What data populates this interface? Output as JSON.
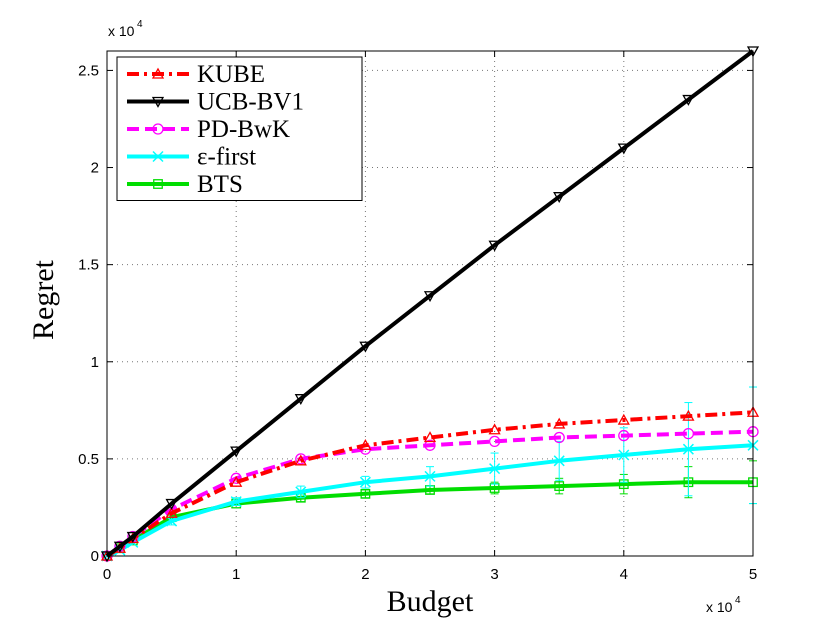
{
  "chart_data": {
    "type": "line",
    "xlabel": "Budget",
    "ylabel": "Regret",
    "x_multiplier_label": "x 10",
    "x_multiplier_exp": "4",
    "y_multiplier_label": "x 10",
    "y_multiplier_exp": "4",
    "xlim": [
      0,
      5
    ],
    "ylim": [
      0,
      2.6
    ],
    "xticks": [
      0,
      1,
      2,
      3,
      4,
      5
    ],
    "xtick_labels": [
      "0",
      "1",
      "2",
      "3",
      "4",
      "5"
    ],
    "yticks": [
      0,
      0.5,
      1,
      1.5,
      2,
      2.5
    ],
    "ytick_labels": [
      "0",
      "0.5",
      "1",
      "1.5",
      "2",
      "2.5"
    ],
    "grid": true,
    "legend_position": "top-left",
    "x": [
      0,
      0.1,
      0.2,
      0.5,
      1,
      1.5,
      2,
      2.5,
      3,
      3.5,
      4,
      4.5,
      5
    ],
    "series": [
      {
        "name": "KUBE",
        "color": "#ff0000",
        "line_style": "dash-dot",
        "marker": "triangle-up",
        "values": [
          0,
          0.04,
          0.09,
          0.22,
          0.38,
          0.49,
          0.57,
          0.61,
          0.65,
          0.68,
          0.7,
          0.72,
          0.74
        ]
      },
      {
        "name": "UCB-BV1",
        "color": "#000000",
        "line_style": "solid",
        "marker": "triangle-down",
        "values": [
          0,
          0.05,
          0.1,
          0.27,
          0.54,
          0.81,
          1.08,
          1.34,
          1.6,
          1.85,
          2.1,
          2.35,
          2.6
        ]
      },
      {
        "name": "PD-BwK",
        "color": "#ff00ff",
        "line_style": "dashed",
        "marker": "circle",
        "values": [
          0,
          0.05,
          0.1,
          0.24,
          0.4,
          0.5,
          0.55,
          0.57,
          0.59,
          0.61,
          0.62,
          0.63,
          0.64
        ]
      },
      {
        "name": "ε-first",
        "color": "#00ffff",
        "line_style": "solid",
        "marker": "x",
        "values": [
          0,
          0.03,
          0.07,
          0.18,
          0.28,
          0.33,
          0.38,
          0.41,
          0.45,
          0.49,
          0.52,
          0.55,
          0.57
        ],
        "error": [
          0,
          0,
          0,
          0.02,
          0.02,
          0.03,
          0.03,
          0.05,
          0.08,
          0.1,
          0.14,
          0.24,
          0.3
        ]
      },
      {
        "name": "BTS",
        "color": "#00dd00",
        "line_style": "solid",
        "marker": "square",
        "values": [
          0,
          0.04,
          0.08,
          0.2,
          0.27,
          0.3,
          0.32,
          0.34,
          0.35,
          0.36,
          0.37,
          0.38,
          0.38
        ],
        "error": [
          0,
          0,
          0,
          0.01,
          0.01,
          0.02,
          0.02,
          0.02,
          0.03,
          0.04,
          0.05,
          0.08,
          0.11
        ]
      }
    ]
  }
}
